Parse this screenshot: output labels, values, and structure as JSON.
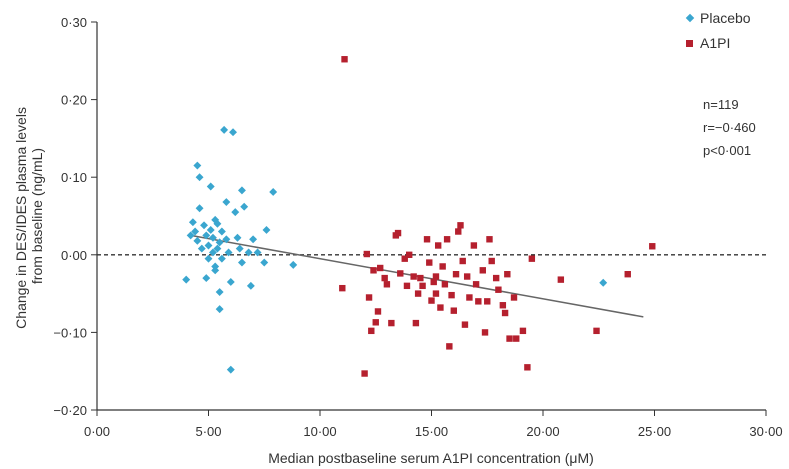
{
  "chart_data": {
    "type": "scatter",
    "xlabel": "Median postbaseline serum A1PI concentration (μM)",
    "ylabel_line1": "Change in DES/IDES plasma levels",
    "ylabel_line2": "from baseline (ng/mL)",
    "xlim": [
      0,
      30
    ],
    "ylim": [
      -0.2,
      0.3
    ],
    "x_ticks": [
      0,
      5,
      10,
      15,
      20,
      25,
      30
    ],
    "x_tick_labels": [
      "0·00",
      "5·00",
      "10·00",
      "15·00",
      "20·00",
      "25·00",
      "30·00"
    ],
    "y_ticks": [
      -0.2,
      -0.1,
      0,
      0.1,
      0.2,
      0.3
    ],
    "y_tick_labels": [
      "−0·20",
      "−0·10",
      "0·00",
      "0·10",
      "0·20",
      "0·30"
    ],
    "reference_line_y": 0,
    "legend_placement": "top-right",
    "stats": [
      "n=119",
      "r=−0·460",
      "p<0·001"
    ],
    "regression": {
      "x": [
        4.2,
        24.5
      ],
      "y": [
        0.025,
        -0.08
      ]
    },
    "series": [
      {
        "name": "Placebo",
        "marker": "diamond",
        "color": "#3aa6cf",
        "points": [
          [
            4.0,
            -0.032
          ],
          [
            4.2,
            0.025
          ],
          [
            4.3,
            0.042
          ],
          [
            4.4,
            0.03
          ],
          [
            4.5,
            0.018
          ],
          [
            4.5,
            0.115
          ],
          [
            4.6,
            0.1
          ],
          [
            4.6,
            0.06
          ],
          [
            4.7,
            0.008
          ],
          [
            4.8,
            0.038
          ],
          [
            4.9,
            0.025
          ],
          [
            4.9,
            -0.03
          ],
          [
            5.0,
            -0.005
          ],
          [
            5.0,
            0.012
          ],
          [
            5.1,
            0.088
          ],
          [
            5.1,
            0.032
          ],
          [
            5.2,
            0.003
          ],
          [
            5.2,
            0.022
          ],
          [
            5.3,
            -0.015
          ],
          [
            5.3,
            -0.02
          ],
          [
            5.3,
            0.045
          ],
          [
            5.4,
            0.04
          ],
          [
            5.4,
            0.008
          ],
          [
            5.5,
            -0.07
          ],
          [
            5.5,
            -0.048
          ],
          [
            5.5,
            0.016
          ],
          [
            5.6,
            0.03
          ],
          [
            5.6,
            -0.005
          ],
          [
            5.7,
            0.161
          ],
          [
            5.8,
            0.068
          ],
          [
            5.8,
            0.02
          ],
          [
            5.9,
            0.003
          ],
          [
            6.0,
            -0.148
          ],
          [
            6.0,
            -0.035
          ],
          [
            6.1,
            0.158
          ],
          [
            6.2,
            0.055
          ],
          [
            6.3,
            0.022
          ],
          [
            6.4,
            0.008
          ],
          [
            6.5,
            -0.01
          ],
          [
            6.5,
            0.083
          ],
          [
            6.6,
            0.062
          ],
          [
            6.8,
            0.003
          ],
          [
            6.9,
            -0.04
          ],
          [
            7.0,
            0.02
          ],
          [
            7.2,
            0.003
          ],
          [
            7.5,
            -0.01
          ],
          [
            7.6,
            0.032
          ],
          [
            7.9,
            0.081
          ],
          [
            8.8,
            -0.013
          ],
          [
            22.7,
            -0.036
          ]
        ]
      },
      {
        "name": "A1PI",
        "marker": "square",
        "color": "#b5202e",
        "points": [
          [
            11.1,
            0.252
          ],
          [
            11.0,
            -0.043
          ],
          [
            12.0,
            -0.153
          ],
          [
            12.1,
            0.001
          ],
          [
            12.2,
            -0.055
          ],
          [
            12.3,
            -0.098
          ],
          [
            12.4,
            -0.02
          ],
          [
            12.5,
            -0.087
          ],
          [
            12.6,
            -0.073
          ],
          [
            12.7,
            -0.017
          ],
          [
            12.9,
            -0.03
          ],
          [
            13.0,
            -0.038
          ],
          [
            13.2,
            -0.088
          ],
          [
            13.4,
            0.025
          ],
          [
            13.5,
            0.028
          ],
          [
            13.6,
            -0.024
          ],
          [
            13.8,
            -0.005
          ],
          [
            13.9,
            -0.04
          ],
          [
            14.0,
            0.0
          ],
          [
            14.2,
            -0.028
          ],
          [
            14.3,
            -0.088
          ],
          [
            14.4,
            -0.05
          ],
          [
            14.5,
            -0.03
          ],
          [
            14.6,
            -0.04
          ],
          [
            14.8,
            0.02
          ],
          [
            14.9,
            -0.01
          ],
          [
            15.0,
            -0.059
          ],
          [
            15.1,
            -0.035
          ],
          [
            15.2,
            -0.028
          ],
          [
            15.2,
            -0.05
          ],
          [
            15.3,
            0.012
          ],
          [
            15.4,
            -0.068
          ],
          [
            15.5,
            -0.015
          ],
          [
            15.6,
            -0.038
          ],
          [
            15.7,
            0.02
          ],
          [
            15.8,
            -0.118
          ],
          [
            15.9,
            -0.052
          ],
          [
            16.0,
            -0.072
          ],
          [
            16.1,
            -0.025
          ],
          [
            16.2,
            0.03
          ],
          [
            16.3,
            0.038
          ],
          [
            16.4,
            -0.008
          ],
          [
            16.5,
            -0.09
          ],
          [
            16.6,
            -0.028
          ],
          [
            16.7,
            -0.055
          ],
          [
            16.9,
            0.012
          ],
          [
            17.0,
            -0.038
          ],
          [
            17.1,
            -0.06
          ],
          [
            17.3,
            -0.02
          ],
          [
            17.4,
            -0.1
          ],
          [
            17.5,
            -0.06
          ],
          [
            17.6,
            0.02
          ],
          [
            17.7,
            -0.008
          ],
          [
            17.9,
            -0.03
          ],
          [
            18.0,
            -0.045
          ],
          [
            18.2,
            -0.065
          ],
          [
            18.3,
            -0.075
          ],
          [
            18.4,
            -0.025
          ],
          [
            18.5,
            -0.108
          ],
          [
            18.7,
            -0.055
          ],
          [
            18.8,
            -0.108
          ],
          [
            19.1,
            -0.098
          ],
          [
            19.3,
            -0.145
          ],
          [
            19.5,
            -0.005
          ],
          [
            20.8,
            -0.032
          ],
          [
            22.4,
            -0.098
          ],
          [
            23.8,
            -0.025
          ],
          [
            24.9,
            0.011
          ]
        ]
      }
    ]
  }
}
